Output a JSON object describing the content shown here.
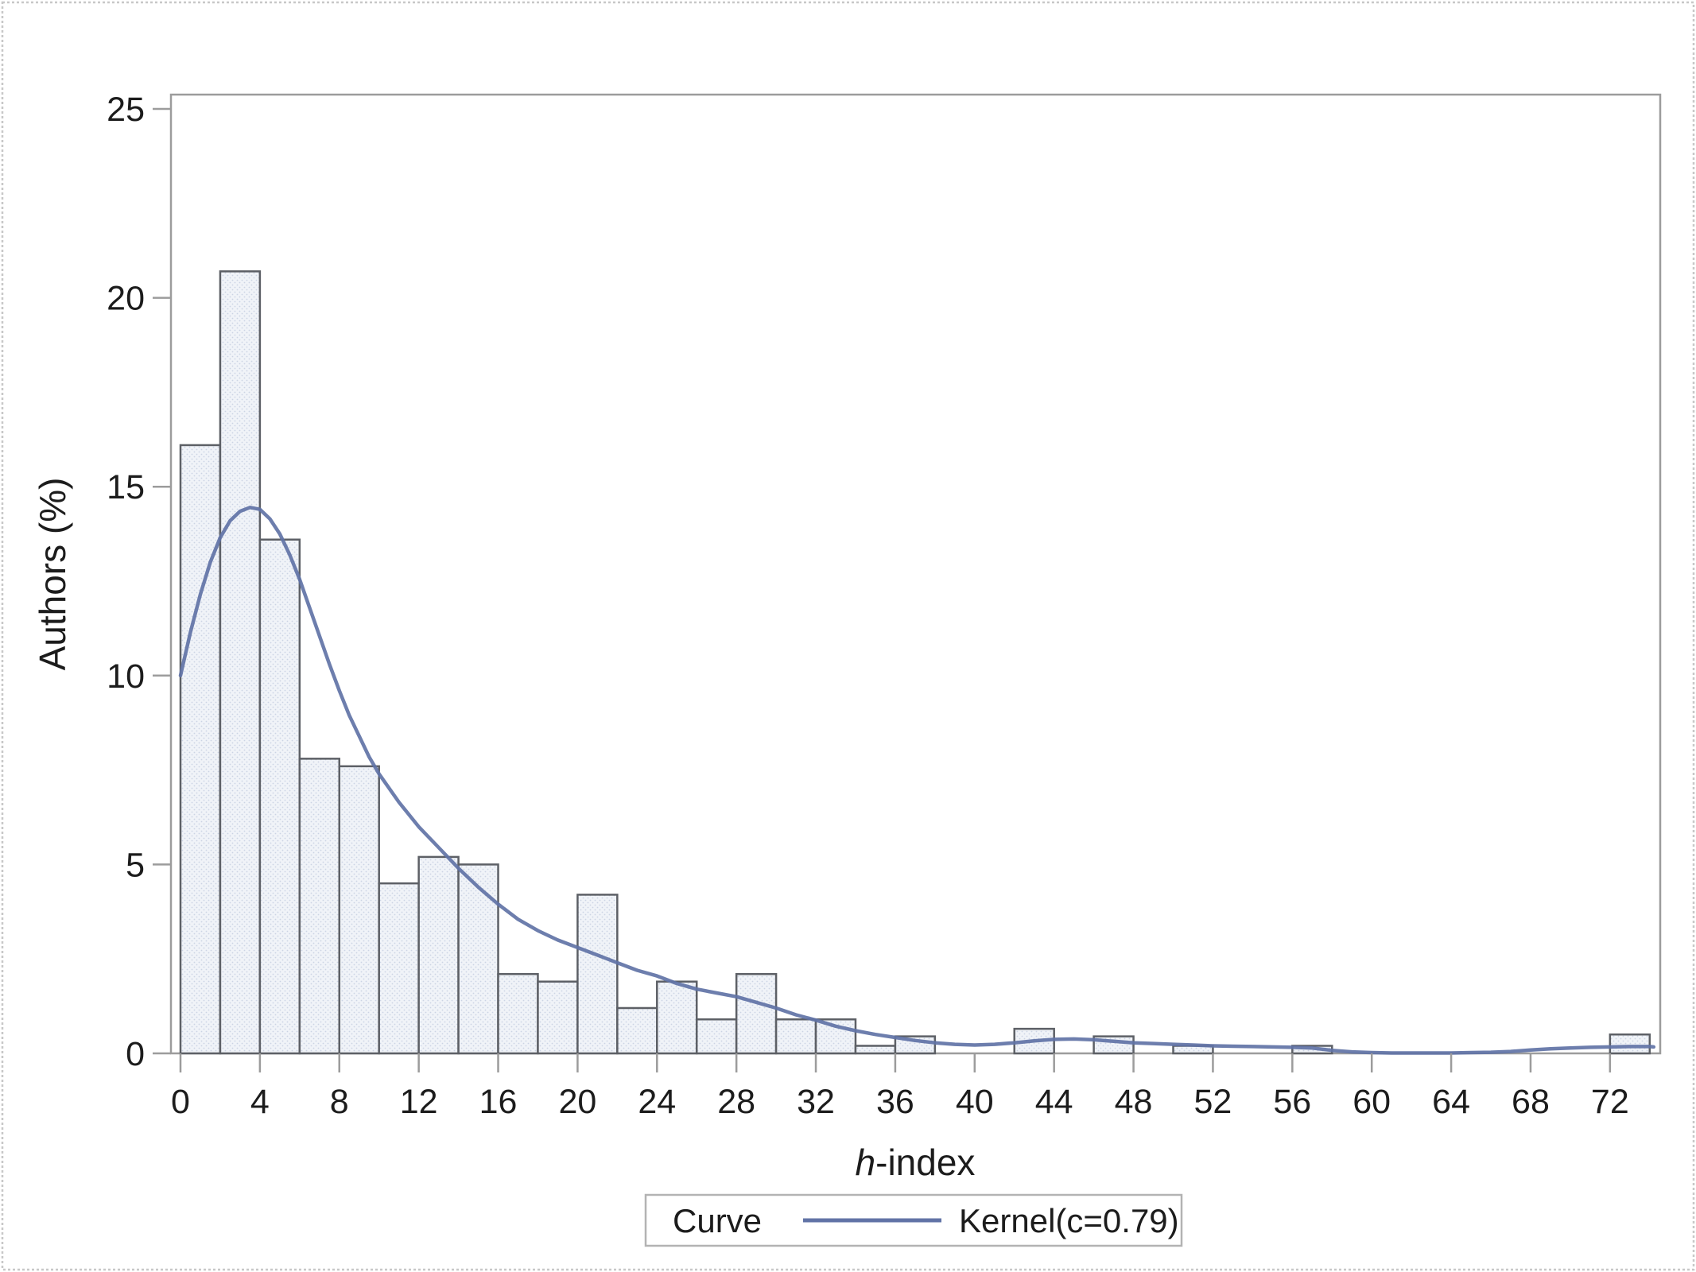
{
  "figure": {
    "ylabel": "Authors (%)",
    "xlabel": "h-index",
    "xlabel_parts": {
      "italic": "h",
      "rest": "-index"
    },
    "legend": {
      "title": "Curve",
      "entry": "Kernel(c=0.79)"
    }
  },
  "colors": {
    "bar_fill": "#f0f3f8",
    "bar_dot": "#ccd4e4",
    "bar_border": "#5d6066",
    "curve": "#6173a6",
    "axis": "#9c9c9c",
    "text": "#1c1c1c",
    "legend_border": "#b3b3b3",
    "figure_border": "#c8c8c8",
    "background": "#ffffff"
  },
  "chart_data": {
    "type": "bar",
    "title": "",
    "xlabel": "h-index",
    "ylabel": "Authors (%)",
    "bin_width": 2,
    "xlim": [
      0,
      74.5
    ],
    "ylim": [
      0,
      25.4
    ],
    "grid": false,
    "legend_position": "bottom",
    "xticks": [
      0,
      4,
      8,
      12,
      16,
      20,
      24,
      28,
      32,
      36,
      40,
      44,
      48,
      52,
      56,
      60,
      64,
      68,
      72
    ],
    "yticks": [
      0,
      5,
      10,
      15,
      20,
      25
    ],
    "bars": [
      {
        "x": 0,
        "pct": 16.1
      },
      {
        "x": 2,
        "pct": 20.7
      },
      {
        "x": 4,
        "pct": 13.6
      },
      {
        "x": 6,
        "pct": 7.8
      },
      {
        "x": 8,
        "pct": 7.6
      },
      {
        "x": 10,
        "pct": 4.5
      },
      {
        "x": 12,
        "pct": 5.2
      },
      {
        "x": 14,
        "pct": 5.0
      },
      {
        "x": 16,
        "pct": 2.1
      },
      {
        "x": 18,
        "pct": 1.9
      },
      {
        "x": 20,
        "pct": 4.2
      },
      {
        "x": 22,
        "pct": 1.2
      },
      {
        "x": 24,
        "pct": 1.9
      },
      {
        "x": 26,
        "pct": 0.9
      },
      {
        "x": 28,
        "pct": 2.1
      },
      {
        "x": 30,
        "pct": 0.9
      },
      {
        "x": 32,
        "pct": 0.9
      },
      {
        "x": 34,
        "pct": 0.2
      },
      {
        "x": 36,
        "pct": 0.45
      },
      {
        "x": 42,
        "pct": 0.65
      },
      {
        "x": 46,
        "pct": 0.45
      },
      {
        "x": 50,
        "pct": 0.2
      },
      {
        "x": 56,
        "pct": 0.2
      },
      {
        "x": 72,
        "pct": 0.5
      }
    ],
    "series": [
      {
        "name": "Kernel(c=0.79)",
        "type": "line",
        "points": [
          [
            0,
            10.0
          ],
          [
            0.5,
            11.15
          ],
          [
            1,
            12.15
          ],
          [
            1.5,
            13.0
          ],
          [
            2,
            13.65
          ],
          [
            2.5,
            14.1
          ],
          [
            3,
            14.35
          ],
          [
            3.5,
            14.45
          ],
          [
            4,
            14.4
          ],
          [
            4.5,
            14.15
          ],
          [
            5,
            13.75
          ],
          [
            5.5,
            13.2
          ],
          [
            6,
            12.55
          ],
          [
            6.5,
            11.8
          ],
          [
            7,
            11.05
          ],
          [
            7.5,
            10.3
          ],
          [
            8,
            9.6
          ],
          [
            8.5,
            8.95
          ],
          [
            9,
            8.4
          ],
          [
            9.5,
            7.85
          ],
          [
            10,
            7.4
          ],
          [
            11,
            6.65
          ],
          [
            12,
            6.0
          ],
          [
            13,
            5.45
          ],
          [
            14,
            4.9
          ],
          [
            15,
            4.4
          ],
          [
            16,
            3.95
          ],
          [
            17,
            3.55
          ],
          [
            18,
            3.25
          ],
          [
            19,
            3.0
          ],
          [
            20,
            2.8
          ],
          [
            21,
            2.6
          ],
          [
            22,
            2.4
          ],
          [
            23,
            2.2
          ],
          [
            24,
            2.05
          ],
          [
            25,
            1.85
          ],
          [
            26,
            1.7
          ],
          [
            27,
            1.6
          ],
          [
            28,
            1.5
          ],
          [
            29,
            1.35
          ],
          [
            30,
            1.2
          ],
          [
            31,
            1.02
          ],
          [
            32,
            0.88
          ],
          [
            33,
            0.72
          ],
          [
            34,
            0.6
          ],
          [
            35,
            0.5
          ],
          [
            36,
            0.42
          ],
          [
            37,
            0.34
          ],
          [
            38,
            0.28
          ],
          [
            39,
            0.24
          ],
          [
            40,
            0.22
          ],
          [
            41,
            0.24
          ],
          [
            42,
            0.28
          ],
          [
            43,
            0.33
          ],
          [
            44,
            0.37
          ],
          [
            45,
            0.38
          ],
          [
            46,
            0.36
          ],
          [
            47,
            0.32
          ],
          [
            48,
            0.28
          ],
          [
            49,
            0.26
          ],
          [
            50,
            0.24
          ],
          [
            51,
            0.22
          ],
          [
            52,
            0.2
          ],
          [
            53,
            0.19
          ],
          [
            54,
            0.18
          ],
          [
            55,
            0.17
          ],
          [
            56,
            0.16
          ],
          [
            57,
            0.14
          ],
          [
            58,
            0.08
          ],
          [
            59,
            0.04
          ],
          [
            60,
            0.02
          ],
          [
            61,
            0.01
          ],
          [
            62,
            0.01
          ],
          [
            63,
            0.01
          ],
          [
            64,
            0.01
          ],
          [
            65,
            0.02
          ],
          [
            66,
            0.03
          ],
          [
            67,
            0.05
          ],
          [
            68,
            0.09
          ],
          [
            69,
            0.12
          ],
          [
            70,
            0.14
          ],
          [
            71,
            0.16
          ],
          [
            72,
            0.17
          ],
          [
            73,
            0.18
          ],
          [
            74,
            0.18
          ],
          [
            74.2,
            0.17
          ]
        ]
      }
    ]
  }
}
